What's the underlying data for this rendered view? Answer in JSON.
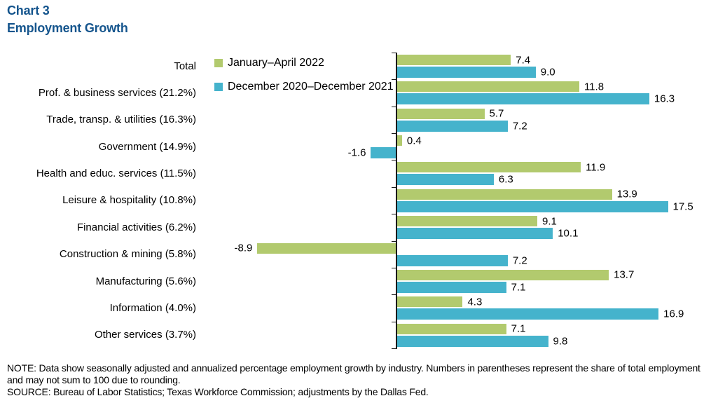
{
  "title": {
    "label": "Chart 3",
    "subtitle": "Employment Growth",
    "color": "#15558d"
  },
  "legend": {
    "items": [
      {
        "label": "January–April 2022",
        "color": "#b2ca6e"
      },
      {
        "label": "December 2020–December 2021",
        "color": "#45b3cc"
      }
    ]
  },
  "chart_data": {
    "type": "bar",
    "orientation": "horizontal",
    "title": "Employment Growth",
    "categories": [
      "Total",
      "Prof. & business services (21.2%)",
      "Trade, transp. & utilities (16.3%)",
      "Government (14.9%)",
      "Health and educ. services (11.5%)",
      "Leisure & hospitality (10.8%)",
      "Financial activities (6.2%)",
      "Construction & mining (5.8%)",
      "Manufacturing (5.6%)",
      "Information (4.0%)",
      "Other services (3.7%)"
    ],
    "series": [
      {
        "name": "January–April 2022",
        "color": "#b2ca6e",
        "values": [
          7.4,
          11.8,
          5.7,
          0.4,
          11.9,
          13.9,
          9.1,
          -8.9,
          13.7,
          4.3,
          7.1
        ]
      },
      {
        "name": "December 2020–December 2021",
        "color": "#45b3cc",
        "values": [
          9.0,
          16.3,
          7.2,
          -1.6,
          6.3,
          17.5,
          10.1,
          7.2,
          7.1,
          16.9,
          9.8
        ]
      }
    ],
    "value_labels": true,
    "value_label_decimals": 1,
    "xlim": [
      -10,
      20
    ],
    "grid": false,
    "legend_position": "top-left-inside"
  },
  "notes": {
    "note": "NOTE: Data show seasonally adjusted and annualized percentage employment growth by industry. Numbers in parentheses represent the share of total employment and may not sum to 100 due to rounding.",
    "source": "SOURCE: Bureau of Labor Statistics; Texas Workforce Commission; adjustments by the Dallas Fed."
  }
}
